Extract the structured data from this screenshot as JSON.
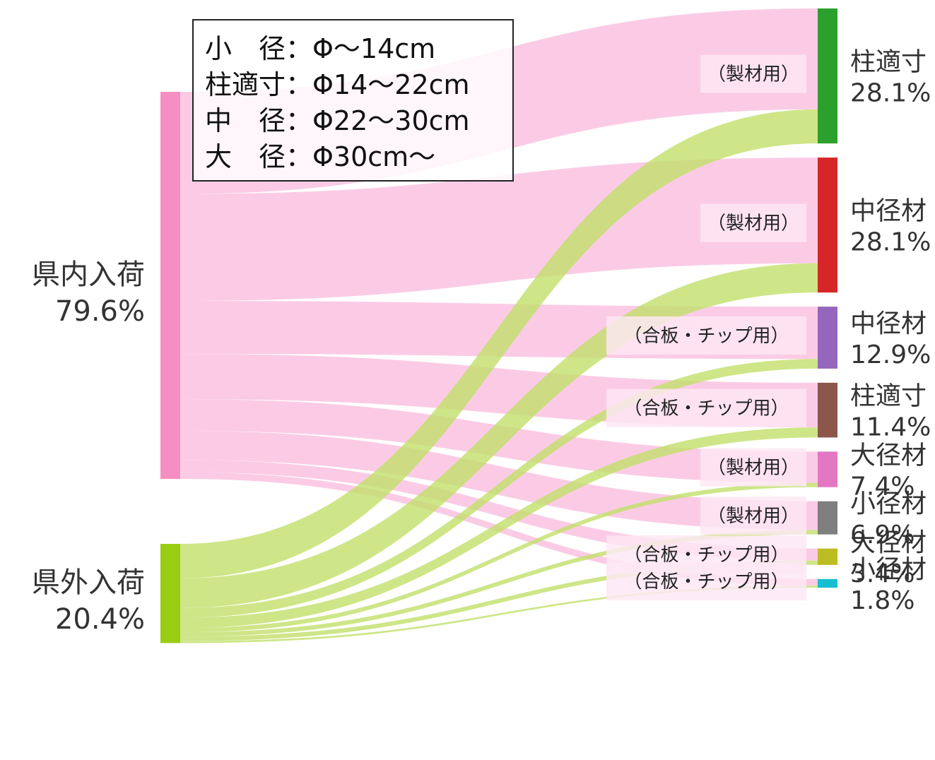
{
  "chart_data": {
    "type": "sankey",
    "sources": [
      {
        "name": "県内入荷",
        "pct_label": "79.6%",
        "value": 79.6,
        "color": "#f58fc3"
      },
      {
        "name": "県外入荷",
        "pct_label": "20.4%",
        "value": 20.4,
        "color": "#9acd12"
      }
    ],
    "targets": [
      {
        "name": "柱適寸",
        "pct_label": "28.1%",
        "value": 28.1,
        "use": "（製材用）",
        "color": "#2ca02c"
      },
      {
        "name": "中径材",
        "pct_label": "28.1%",
        "value": 28.1,
        "use": "（製材用）",
        "color": "#d62728"
      },
      {
        "name": "中径材",
        "pct_label": "12.9%",
        "value": 12.9,
        "use": "（合板・チップ用）",
        "color": "#9467bd"
      },
      {
        "name": "柱適寸",
        "pct_label": "11.4%",
        "value": 11.4,
        "use": "（合板・チップ用）",
        "color": "#8c564b"
      },
      {
        "name": "大径材",
        "pct_label": "7.4%",
        "value": 7.4,
        "use": "（製材用）",
        "color": "#e377c2"
      },
      {
        "name": "小径材",
        "pct_label": "6.9%",
        "value": 6.9,
        "use": "（製材用）",
        "color": "#7f7f7f"
      },
      {
        "name": "大径材",
        "pct_label": "3.4%",
        "value": 3.4,
        "use": "（合板・チップ用）",
        "color": "#bcbd22"
      },
      {
        "name": "小径材",
        "pct_label": "1.8%",
        "value": 1.8,
        "use": "（合板・チップ用）",
        "color": "#17becf"
      }
    ],
    "flows": [
      {
        "source": 0,
        "target": 0,
        "value": 21.0
      },
      {
        "source": 0,
        "target": 1,
        "value": 22.0
      },
      {
        "source": 0,
        "target": 2,
        "value": 10.9
      },
      {
        "source": 0,
        "target": 3,
        "value": 9.3
      },
      {
        "source": 0,
        "target": 4,
        "value": 6.5
      },
      {
        "source": 0,
        "target": 5,
        "value": 6.0
      },
      {
        "source": 0,
        "target": 6,
        "value": 2.5
      },
      {
        "source": 0,
        "target": 7,
        "value": 1.4
      },
      {
        "source": 1,
        "target": 0,
        "value": 7.1
      },
      {
        "source": 1,
        "target": 1,
        "value": 6.1
      },
      {
        "source": 1,
        "target": 2,
        "value": 2.0
      },
      {
        "source": 1,
        "target": 3,
        "value": 2.1
      },
      {
        "source": 1,
        "target": 4,
        "value": 0.9
      },
      {
        "source": 1,
        "target": 5,
        "value": 0.9
      },
      {
        "source": 1,
        "target": 6,
        "value": 0.9
      },
      {
        "source": 1,
        "target": 7,
        "value": 0.4
      }
    ],
    "flow_colors": {
      "domestic": "#f9b9dc",
      "outside": "#c2e06a"
    },
    "legend": [
      "小　径：Φ～14cm",
      "柱適寸：Φ14～22cm",
      "中　径：Φ22～30cm",
      "大　径：Φ30cm～"
    ]
  }
}
